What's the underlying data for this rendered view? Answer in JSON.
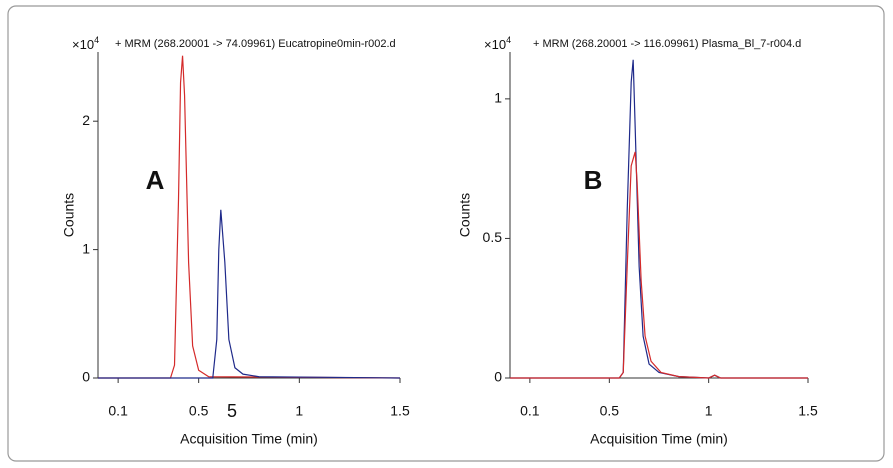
{
  "chart_data": [
    {
      "type": "line",
      "title": "+ MRM (268.20001 -> 74.09961) Eucatropine0min-r002.d",
      "y_multiplier": "×10",
      "y_multiplier_exponent": "4",
      "xlabel": "Acquisition Time (min)",
      "ylabel": "Counts",
      "annotations": [
        "A",
        "5"
      ],
      "xlim": [
        0,
        1.5
      ],
      "xticks": [
        0.1,
        0.5,
        1,
        1.5
      ],
      "ylim": [
        0,
        2.5
      ],
      "yticks": [
        0,
        1,
        2
      ],
      "series": [
        {
          "color": "#d42a2a",
          "x": [
            0,
            0.36,
            0.38,
            0.4,
            0.41,
            0.42,
            0.43,
            0.45,
            0.47,
            0.5,
            0.55,
            1.5
          ],
          "values": [
            0,
            0,
            0.1,
            1.4,
            2.3,
            2.51,
            2.2,
            0.9,
            0.25,
            0.06,
            0.01,
            0
          ]
        },
        {
          "color": "#1f2a8a",
          "x": [
            0,
            0.57,
            0.59,
            0.6,
            0.61,
            0.63,
            0.65,
            0.68,
            0.72,
            0.8,
            1.5
          ],
          "values": [
            0,
            0,
            0.3,
            1.0,
            1.31,
            0.9,
            0.3,
            0.08,
            0.03,
            0.01,
            0
          ]
        }
      ]
    },
    {
      "type": "line",
      "title": "+ MRM (268.20001 -> 116.09961) Plasma_Bl_7-r004.d",
      "y_multiplier": "×10",
      "y_multiplier_exponent": "4",
      "xlabel": "Acquisition Time (min)",
      "ylabel": "Counts",
      "annotations": [
        "B"
      ],
      "xlim": [
        0,
        1.5
      ],
      "xticks": [
        0.1,
        0.5,
        1,
        1.5
      ],
      "ylim": [
        0,
        1.15
      ],
      "yticks": [
        0,
        0.5,
        1
      ],
      "series": [
        {
          "color": "#1f2a8a",
          "x": [
            0,
            0.55,
            0.57,
            0.59,
            0.61,
            0.62,
            0.63,
            0.65,
            0.67,
            0.7,
            0.75,
            0.85,
            1.0,
            1.03,
            1.06,
            1.5
          ],
          "values": [
            0,
            0,
            0.02,
            0.6,
            1.06,
            1.14,
            0.9,
            0.4,
            0.15,
            0.05,
            0.02,
            0.005,
            0,
            0.01,
            0,
            0
          ]
        },
        {
          "color": "#d42a2a",
          "x": [
            0,
            0.55,
            0.57,
            0.59,
            0.61,
            0.63,
            0.64,
            0.66,
            0.68,
            0.71,
            0.76,
            0.85,
            1.0,
            1.03,
            1.06,
            1.5
          ],
          "values": [
            0,
            0,
            0.02,
            0.4,
            0.76,
            0.81,
            0.7,
            0.35,
            0.15,
            0.06,
            0.02,
            0.005,
            0,
            0.01,
            0,
            0
          ]
        }
      ]
    }
  ]
}
